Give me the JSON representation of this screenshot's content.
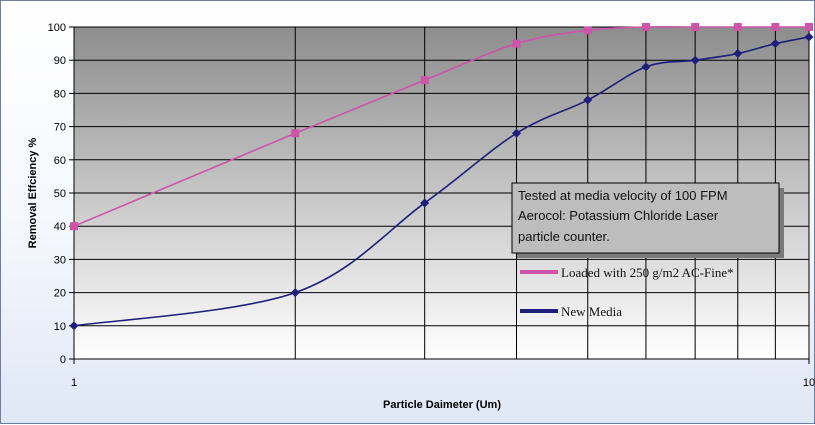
{
  "chart_data": {
    "type": "line",
    "title": "",
    "xlabel": "Particle Daimeter (Um)",
    "ylabel": "Removal Effciency %",
    "x_scale": "log",
    "xlim": [
      1,
      10
    ],
    "ylim": [
      0,
      100
    ],
    "x_ticks": [
      "1",
      "10"
    ],
    "y_ticks": [
      "0",
      "10",
      "20",
      "30",
      "40",
      "50",
      "60",
      "70",
      "80",
      "90",
      "100"
    ],
    "grid": true,
    "legend_position": "right",
    "annotation": [
      "Tested at media velocity of 100 FPM",
      "Aerocol: Potassium Chloride Laser",
      "particle counter."
    ],
    "series": [
      {
        "name": "Loaded with 250 g/m2 AC-Fine*",
        "color": "#cc55aa",
        "marker": "square",
        "x": [
          1,
          2,
          3,
          4,
          5,
          6,
          7,
          8,
          9,
          10
        ],
        "y": [
          40,
          68,
          84,
          95,
          99,
          100,
          100,
          100,
          100,
          100
        ]
      },
      {
        "name": "New Media",
        "color": "#1f1f7a",
        "marker": "diamond",
        "x": [
          1,
          2,
          3,
          4,
          5,
          6,
          7,
          8,
          9,
          10
        ],
        "y": [
          10,
          20,
          47,
          68,
          78,
          88,
          90,
          92,
          95,
          97
        ]
      }
    ]
  }
}
